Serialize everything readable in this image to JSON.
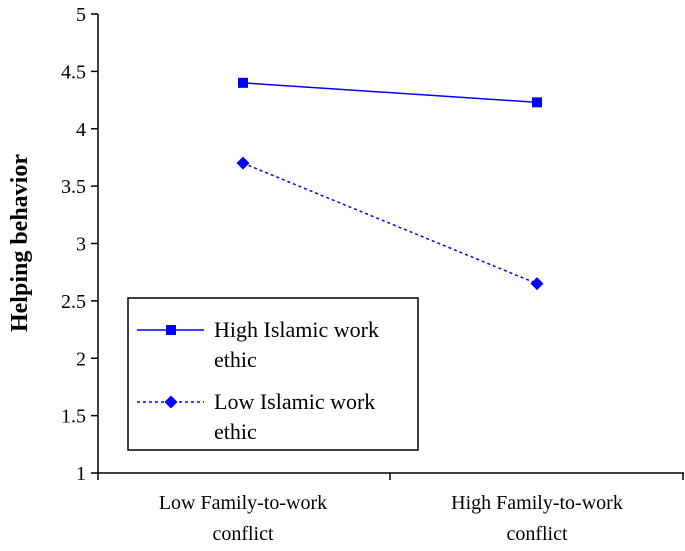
{
  "chart_data": {
    "type": "line",
    "title": "",
    "ylabel": "Helping behavior",
    "xlabel": "",
    "categories": [
      [
        "Low Family-to-work",
        "conflict"
      ],
      [
        "High Family-to-work",
        "conflict"
      ]
    ],
    "ylim": [
      1,
      5
    ],
    "yticks": [
      "1",
      "1.5",
      "2",
      "2.5",
      "3",
      "3.5",
      "4",
      "4.5",
      "5"
    ],
    "grid": false,
    "legend_position": "bottom-left",
    "series": [
      {
        "name": [
          "High Islamic work",
          "ethic"
        ],
        "values": [
          4.4,
          4.23
        ],
        "color": "#0000FF",
        "marker": "square",
        "line_style": "solid"
      },
      {
        "name": [
          "Low Islamic work",
          "ethic"
        ],
        "values": [
          3.7,
          2.65
        ],
        "color": "#0000FF",
        "marker": "diamond",
        "line_style": "dotted"
      }
    ]
  }
}
